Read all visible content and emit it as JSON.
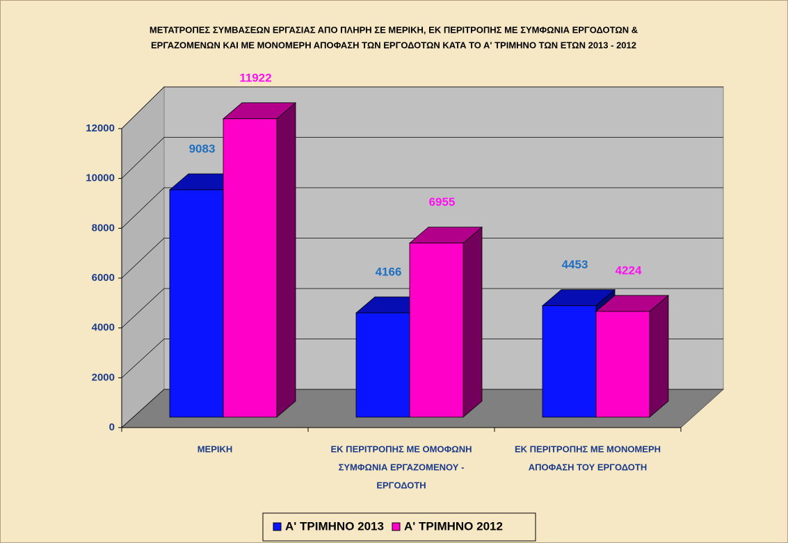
{
  "chart_data": {
    "type": "bar3d",
    "title": [
      "ΜΕΤΑΤΡΟΠΕΣ ΣΥΜΒΑΣΕΩΝ ΕΡΓΑΣΙΑΣ ΑΠΟ ΠΛΗΡΗ ΣΕ ΜΕΡΙΚΗ, ΕΚ ΠΕΡΙΤΡΟΠΗΣ ΜΕ ΣΥΜΦΩΝΙΑ ΕΡΓΟΔΟΤΩΝ &",
      "ΕΡΓΑΖΟΜΕΝΩΝ ΚΑΙ ΜΕ ΜΟΝΟΜΕΡΗ ΑΠΟΦΑΣΗ ΤΩΝ ΕΡΓΟΔΟΤΩΝ ΚΑΤΑ ΤΟ Α' ΤΡΙΜΗΝΟ ΤΩΝ ΕΤΩΝ 2013 - 2012"
    ],
    "categories": [
      [
        "ΜΕΡΙΚΗ"
      ],
      [
        "ΕΚ ΠΕΡΙΤΡΟΠΗΣ ΜΕ ΟΜΟΦΩΝΗ",
        "ΣΥΜΦΩΝΙΑ ΕΡΓΑΖΟΜΕΝΟΥ -",
        "ΕΡΓΟΔΟΤΗ"
      ],
      [
        "ΕΚ ΠΕΡΙΤΡΟΠΗΣ ΜΕ ΜΟΝΟΜΕΡΗ",
        "ΑΠΟΦΑΣΗ ΤΟΥ ΕΡΓΟΔΟΤΗ"
      ]
    ],
    "series": [
      {
        "name": "Α' ΤΡΙΜΗΝΟ 2013",
        "color": "#0a14ff",
        "label_color": "#1e6fc0",
        "values": [
          9083,
          4166,
          4453
        ]
      },
      {
        "name": "Α' ΤΡΙΜΗΝΟ 2012",
        "color": "#ff00c8",
        "label_color": "#ff10f0",
        "values": [
          11922,
          6955,
          4224
        ]
      }
    ],
    "ylim": [
      0,
      12000
    ],
    "yticks": [
      0,
      2000,
      4000,
      6000,
      8000,
      10000,
      12000
    ],
    "grid": true
  }
}
